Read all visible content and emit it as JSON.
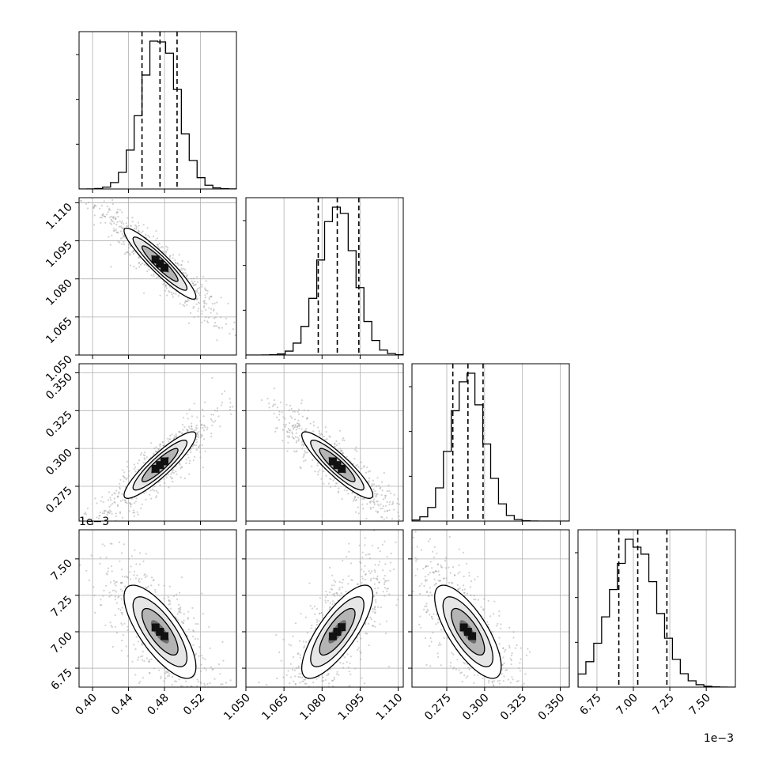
{
  "chart_data": {
    "type": "scatter",
    "subtype": "corner-plot",
    "grid": true,
    "quantile_lines": "dashed",
    "params": [
      {
        "range": [
          0.385,
          0.56
        ],
        "ticks": [
          "0.40",
          "0.44",
          "0.48",
          "0.52"
        ],
        "quantiles": [
          0.455,
          0.475,
          0.494
        ],
        "mean": 0.475,
        "sd": 0.02
      },
      {
        "range": [
          1.05,
          1.112
        ],
        "ticks": [
          "1.050",
          "1.065",
          "1.080",
          "1.095",
          "1.110"
        ],
        "quantiles": [
          1.0785,
          1.086,
          1.0945
        ],
        "mean": 1.086,
        "sd": 0.007
      },
      {
        "range": [
          0.252,
          0.356
        ],
        "ticks": [
          "0.275",
          "0.300",
          "0.325",
          "0.350"
        ],
        "quantiles": [
          0.279,
          0.289,
          0.299
        ],
        "mean": 0.289,
        "sd": 0.011
      },
      {
        "range": [
          6.62,
          7.7
        ],
        "ticks": [
          "6.75",
          "7.00",
          "7.25",
          "7.50"
        ],
        "quantiles": [
          6.9,
          7.03,
          7.23
        ],
        "mean": 7.0,
        "sd": 0.16,
        "offset_label": "1e−3"
      }
    ],
    "correlations": {
      "1_0": -0.93,
      "2_0": 0.9,
      "2_1": -0.9,
      "3_0": -0.75,
      "3_1": 0.78,
      "3_2": -0.74
    },
    "hist_y_ticks": 3
  }
}
